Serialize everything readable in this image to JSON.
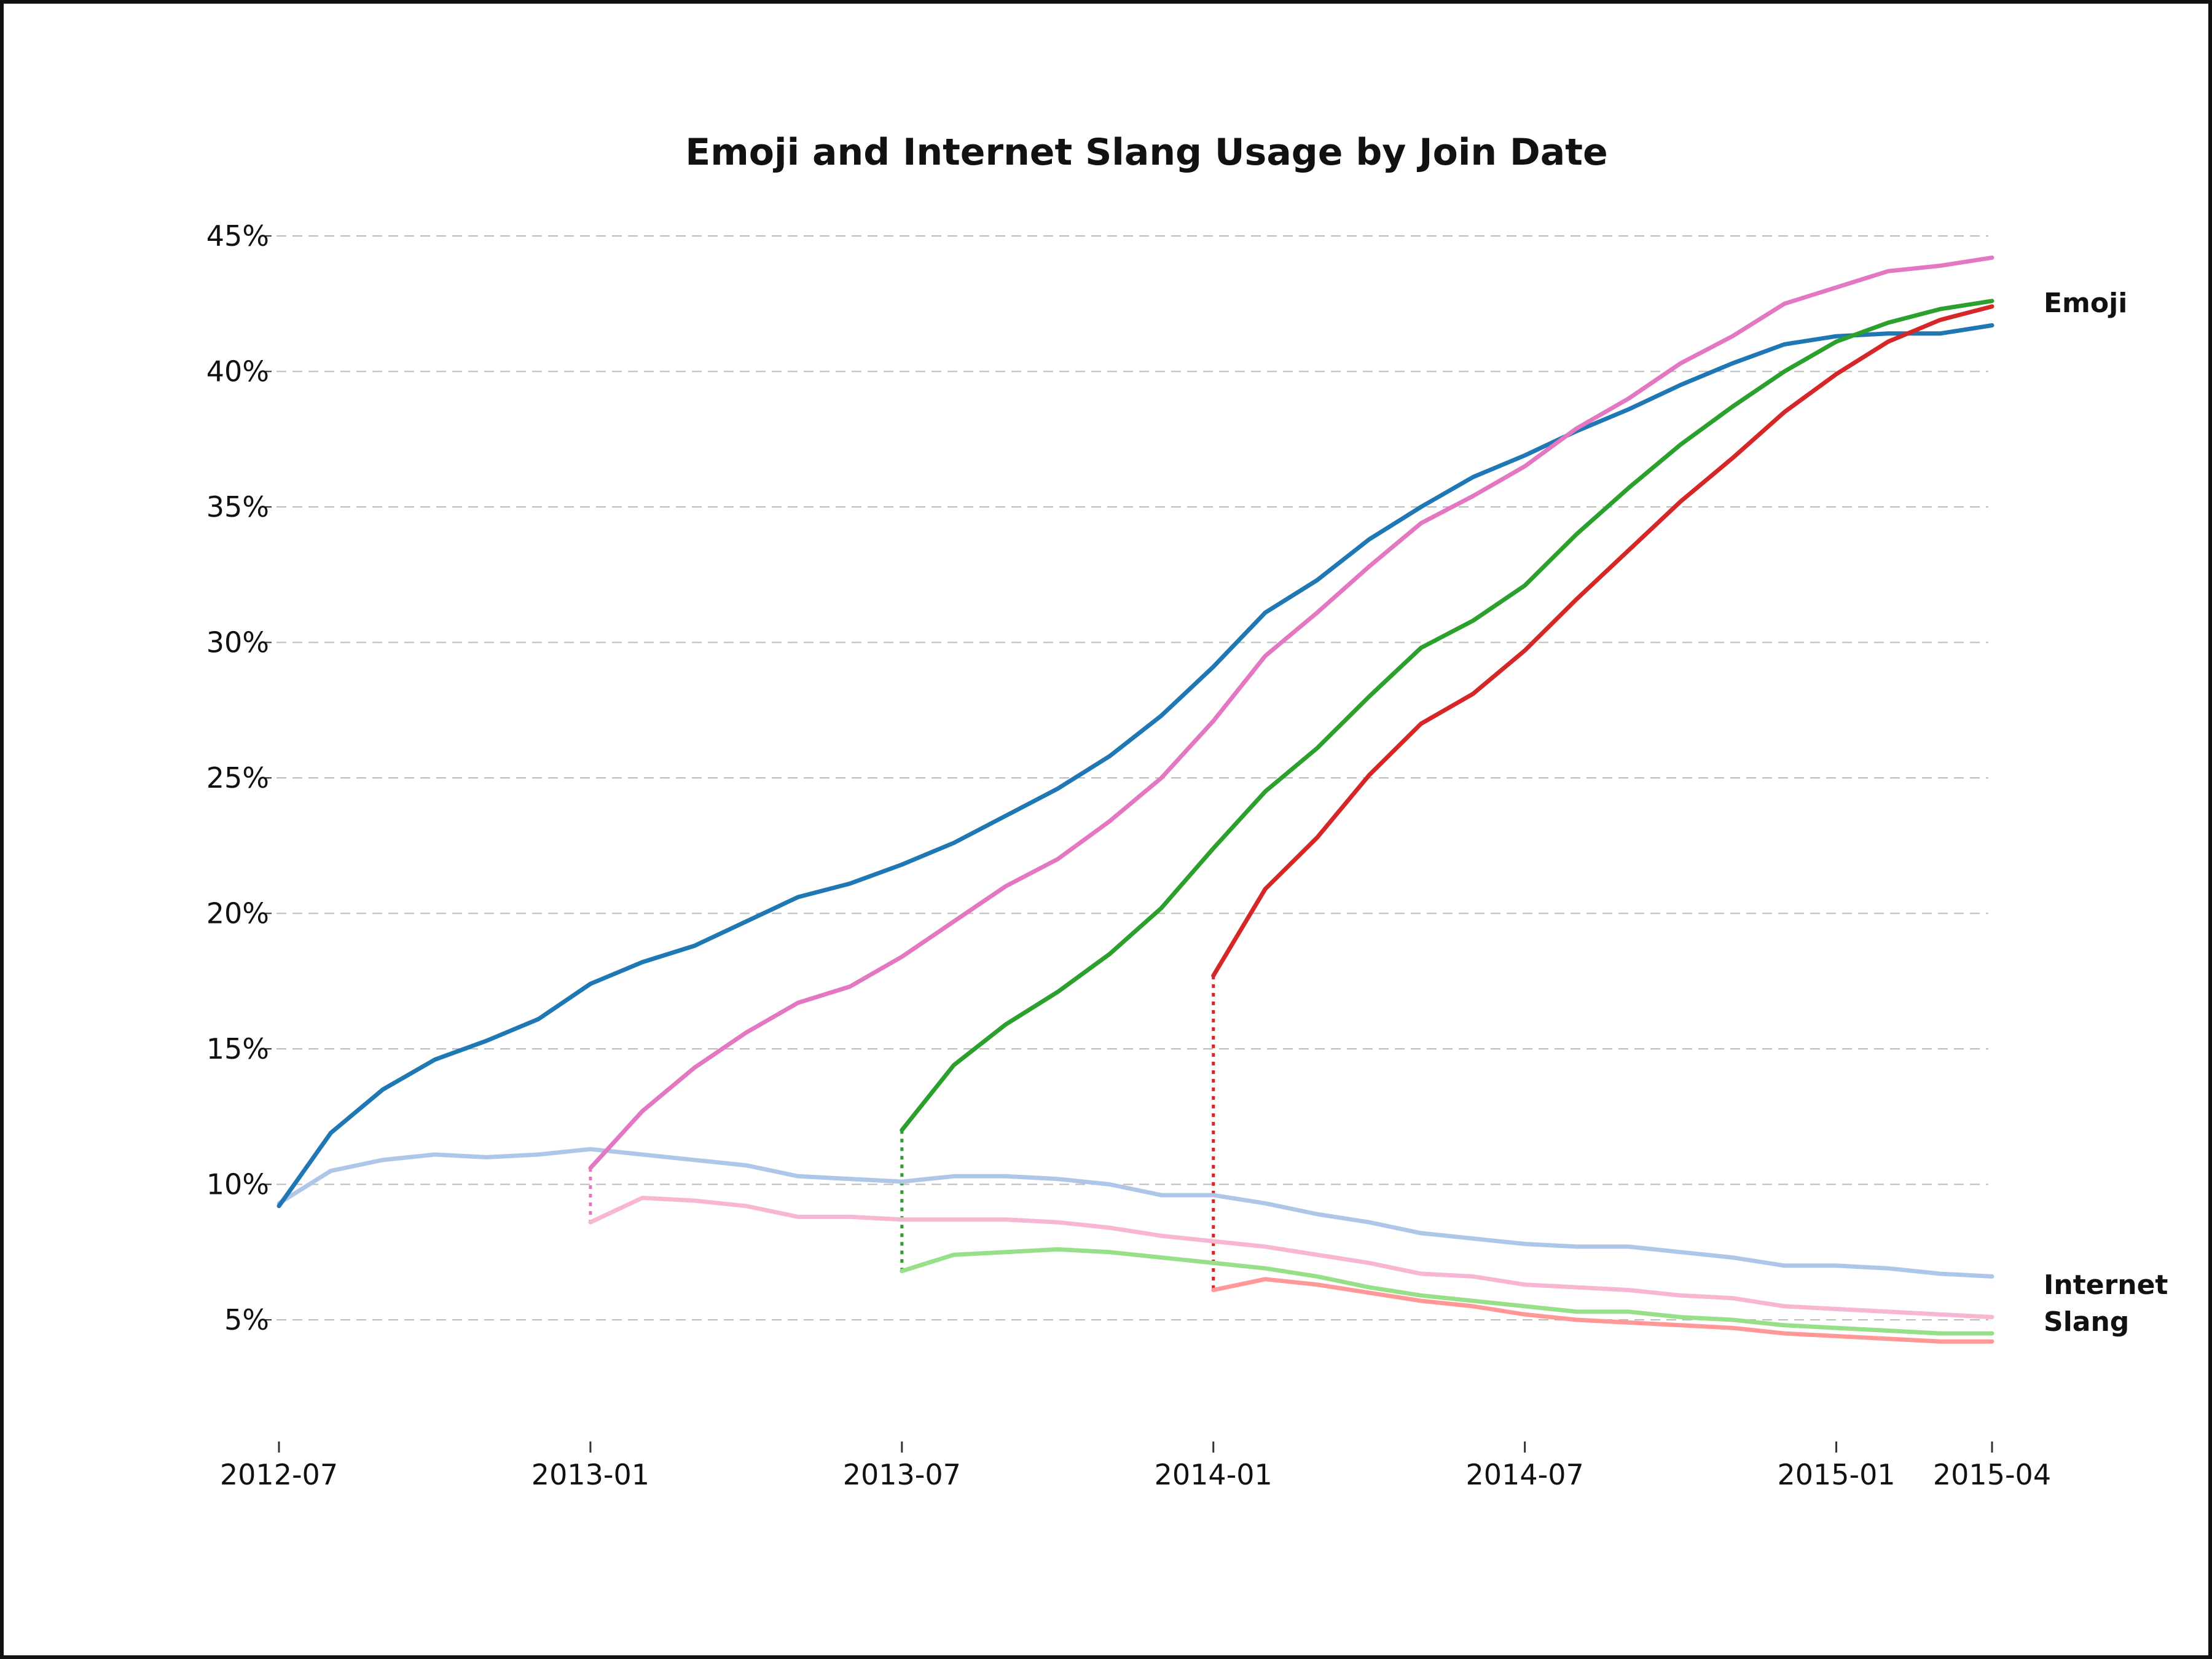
{
  "chart_data": {
    "type": "line",
    "title": "Emoji and Internet Slang Usage by Join Date",
    "xlabel": "",
    "ylabel": "",
    "x_ticks": [
      "2012-07",
      "2013-01",
      "2013-07",
      "2014-01",
      "2014-07",
      "2015-01",
      "2015-04"
    ],
    "y_ticks": [
      5,
      10,
      15,
      20,
      25,
      30,
      35,
      40,
      45
    ],
    "y_tick_format": "%",
    "ylim": [
      0.5,
      48
    ],
    "xlim": [
      "2012-07",
      "2015-04"
    ],
    "grid": true,
    "end_labels": {
      "emoji": "Emoji",
      "slang_line1": "Internet",
      "slang_line2": "Slang"
    },
    "series": [
      {
        "group": "emoji",
        "color": "#1f77b4",
        "start": "2012-07",
        "values": [
          9.2,
          11.9,
          13.5,
          14.6,
          15.3,
          16.1,
          17.4,
          18.2,
          18.8,
          19.7,
          20.6,
          21.1,
          21.8,
          22.6,
          23.6,
          24.6,
          25.8,
          27.3,
          29.1,
          31.1,
          32.3,
          33.8,
          35.0,
          36.1,
          36.9,
          37.8,
          38.6,
          39.5,
          40.3,
          41.0,
          41.3,
          41.4,
          41.4,
          41.7
        ]
      },
      {
        "group": "slang",
        "color": "#aec7e8",
        "start": "2012-07",
        "values": [
          9.3,
          10.5,
          10.9,
          11.1,
          11.0,
          11.1,
          11.3,
          11.1,
          10.9,
          10.7,
          10.3,
          10.2,
          10.1,
          10.3,
          10.3,
          10.2,
          10.0,
          9.6,
          9.6,
          9.3,
          8.9,
          8.6,
          8.2,
          8.0,
          7.8,
          7.7,
          7.7,
          7.5,
          7.3,
          7.0,
          7.0,
          6.9,
          6.7,
          6.6
        ]
      },
      {
        "group": "emoji",
        "color": "#e377c2",
        "start": "2013-01",
        "values": [
          10.6,
          12.7,
          14.3,
          15.6,
          16.7,
          17.3,
          18.4,
          19.7,
          21.0,
          22.0,
          23.4,
          25.0,
          27.1,
          29.5,
          31.1,
          32.8,
          34.4,
          35.4,
          36.5,
          37.9,
          39.0,
          40.3,
          41.3,
          42.5,
          43.1,
          43.7,
          43.9,
          44.2
        ]
      },
      {
        "group": "slang",
        "color": "#f7b6d2",
        "start": "2013-01",
        "values": [
          8.6,
          9.5,
          9.4,
          9.2,
          8.8,
          8.8,
          8.7,
          8.7,
          8.7,
          8.6,
          8.4,
          8.1,
          7.9,
          7.7,
          7.4,
          7.1,
          6.7,
          6.6,
          6.3,
          6.2,
          6.1,
          5.9,
          5.8,
          5.5,
          5.4,
          5.3,
          5.2,
          5.1
        ]
      },
      {
        "group": "emoji",
        "color": "#2ca02c",
        "start": "2013-07",
        "values": [
          12.0,
          14.4,
          15.9,
          17.1,
          18.5,
          20.2,
          22.4,
          24.5,
          26.1,
          28.0,
          29.8,
          30.8,
          32.1,
          34.0,
          35.7,
          37.3,
          38.7,
          40.0,
          41.1,
          41.8,
          42.3,
          42.6
        ]
      },
      {
        "group": "slang",
        "color": "#98df8a",
        "start": "2013-07",
        "values": [
          6.8,
          7.4,
          7.5,
          7.6,
          7.5,
          7.3,
          7.1,
          6.9,
          6.6,
          6.2,
          5.9,
          5.7,
          5.5,
          5.3,
          5.3,
          5.1,
          5.0,
          4.8,
          4.7,
          4.6,
          4.5,
          4.5
        ]
      },
      {
        "group": "emoji",
        "color": "#d62728",
        "start": "2014-01",
        "values": [
          17.7,
          20.9,
          22.8,
          25.1,
          27.0,
          28.1,
          29.7,
          31.6,
          33.4,
          35.2,
          36.8,
          38.5,
          39.9,
          41.1,
          41.9,
          42.4
        ]
      },
      {
        "group": "slang",
        "color": "#ff9896",
        "start": "2014-01",
        "values": [
          6.1,
          6.5,
          6.3,
          6.0,
          5.7,
          5.5,
          5.2,
          5.0,
          4.9,
          4.8,
          4.7,
          4.5,
          4.4,
          4.3,
          4.2,
          4.2
        ]
      }
    ]
  }
}
